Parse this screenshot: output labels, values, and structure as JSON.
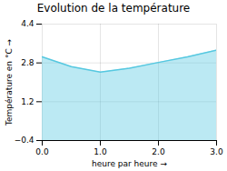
{
  "chart_data": {
    "type": "area",
    "title": "Evolution de la température",
    "xlabel": "heure par heure",
    "ylabel": "Température en °C",
    "x": [
      0,
      0.5,
      1.0,
      1.5,
      2.0,
      2.5,
      3.0
    ],
    "values": [
      3.05,
      2.65,
      2.42,
      2.58,
      2.82,
      3.05,
      3.33
    ],
    "color": "#56c8e0",
    "xlim": [
      0,
      3
    ],
    "xticks": [
      0,
      1,
      2,
      3
    ],
    "ylim": [
      -0.4,
      4.4
    ],
    "yticks": [
      -0.4,
      1.2,
      2.8,
      4.4
    ],
    "grid": true
  }
}
